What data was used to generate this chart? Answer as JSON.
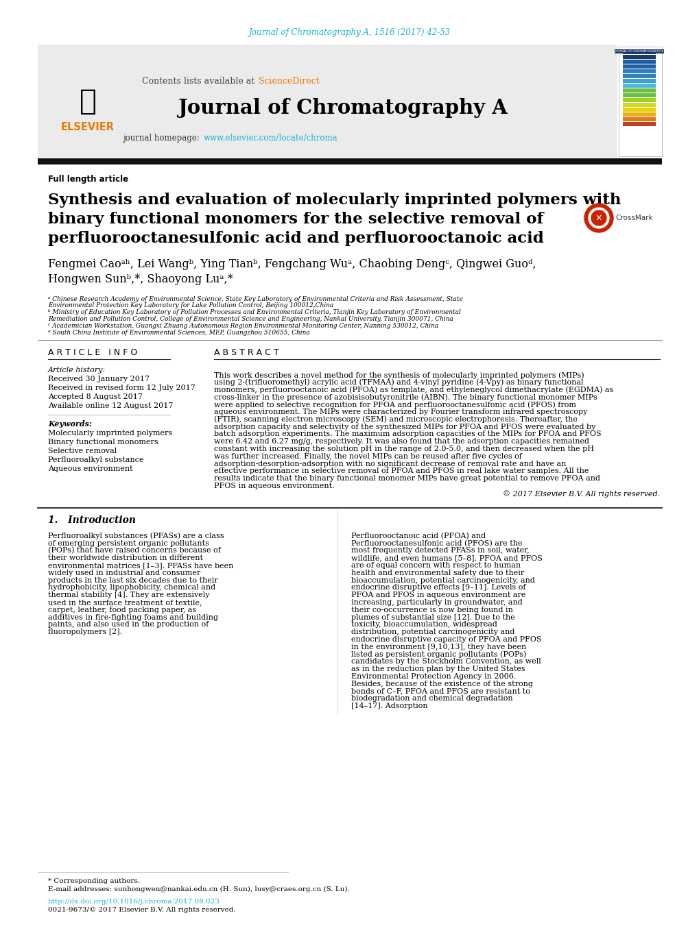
{
  "journal_ref": "Journal of Chromatography A, 1516 (2017) 42-53",
  "journal_ref_color": "#1ab2d4",
  "science_direct_color": "#f07800",
  "journal_name": "Journal of Chromatography A",
  "journal_homepage_url": "www.elsevier.com/locate/chroma",
  "journal_homepage_url_color": "#1ab2d4",
  "article_type": "Full length article",
  "title_line1": "Synthesis and evaluation of molecularly imprinted polymers with",
  "title_line2": "binary functional monomers for the selective removal of",
  "title_line3": "perfluorooctanesulfonic acid and perfluorooctanoic acid",
  "affil_a": "ᵃ Chinese Research Academy of Environmental Science, State Key Laboratory of Environmental Criteria and Risk Assessment, State Environmental Protection Key Laboratory for Lake Pollution Control, Beijing 100012,China",
  "affil_b": "ᵇ Ministry of Education Key Laboratory of Pollution Processes and Environmental Criteria, Tianjin Key Laboratory of Environmental Remediation and Pollution Control, College of Environmental Science and Engineering, Nankai University, Tianjin 300071, China",
  "affil_c": "ᶜ Academician Workstation, Guangxi Zhuang Autonomous Region Environmental Monitoring Center, Nanning 530012, China",
  "affil_d": "ᵈ South China Institute of Environmental Sciences, MEP, Guangzhou 510655, China",
  "article_info_header": "A R T I C L E   I N F O",
  "abstract_header": "A B S T R A C T",
  "article_history_label": "Article history:",
  "received": "Received 30 January 2017",
  "received_revised": "Received in revised form 12 July 2017",
  "accepted": "Accepted 8 August 2017",
  "available": "Available online 12 August 2017",
  "keywords_label": "Keywords:",
  "keywords": [
    "Molecularly imprinted polymers",
    "Binary functional monomers",
    "Selective removal",
    "Perfluoroalkyl substance",
    "Aqueous environment"
  ],
  "abstract_text": "This work describes a novel method for the synthesis of molecularly imprinted polymers (MIPs) using 2-(trifluoromethyl) acrylic acid (TFMAA) and 4-vinyl pyridine (4-Vpy) as binary functional monomers, perfluorooctanoic acid (PFOA) as template, and ethyleneglycol dimethacrylate (EGDMA) as cross-linker in the presence of azobisisobutyronitrile (AIBN). The binary functional monomer MIPs were applied to selective recognition for PFOA and perfluorooctanesulfonic acid (PFOS) from aqueous environment. The MIPs were characterized by Fourier transform infrared spectroscopy (FTIR), scanning electron microscopy (SEM) and microscopic electrophoresis. Thereafter, the adsorption capacity and selectivity of the synthesized MIPs for PFOA and PFOS were evaluated by batch adsorption experiments. The maximum adsorption capacities of the MIPs for PFOA and PFOS were 6.42 and 6.27 mg/g, respectively. It was also found that the adsorption capacities remained constant with increasing the solution pH in the range of 2.0-5.0, and then decreased when the pH was further increased. Finally, the novel MIPs can be reused after five cycles of adsorption-desorption-adsorption with no significant decrease of removal rate and have an effective performance in selective removal of PFOA and PFOS in real lake water samples. All the results indicate that the binary functional monomer MIPs have great potential to remove PFOA and PFOS in aqueous environment.",
  "copyright": "© 2017 Elsevier B.V. All rights reserved.",
  "intro_header": "1.   Introduction",
  "intro_col1": "Perfluoroalkyl substances (PFASs) are a class of emerging persistent organic pollutants (POPs) that have raised concerns because of their worldwide distribution in different environmental matrices [1–3]. PFASs have been widely used in industrial and consumer products in the last six decades due to their hydrophobicity, lipophobicity, chemical and thermal stability [4]. They are extensively used in the surface treatment of textile, carpet, leather, food packing paper, as additives in fire-fighting foams and building paints, and also used in the production of fluoropolymers [2].",
  "intro_col2": "Perfluorooctanoic acid (PFOA) and Perfluorooctanesulfonic acid (PFOS) are the most frequently detected PFASs in soil, water, wildlife, and even humans [5–8]. PFOA and PFOS are of equal concern with respect to human health and environmental safety due to their bioaccumulation, potential carcinogenicity, and endocrine disruptive effects [9–11]. Levels of PFOA and PFOS in aqueous environment are increasing, particularly in groundwater, and their co-occurrence is now being found in plumes of substantial size [12]. Due to the toxicity, bioaccumulation, widespread distribution, potential carcinogenicity and endocrine disruptive capacity of PFOA and PFOS in the environment [9,10,13], they have been listed as persistent organic pollutants (POPs) candidates by the Stockholm Convention, as well as in the reduction plan by the United States Environmental Protection Agency in 2006. Besides, because of the existence of the strong bonds of C–F, PFOA and PFOS are resistant to biodegradation and chemical degradation [14–17]. Adsorption",
  "footnote_star": "* Corresponding authors.",
  "footnote_email": "E-mail addresses: sunhongwen@nankai.edu.cn (H. Sun), lusy@craes.org.cn (S. Lu).",
  "footnote_doi": "http://dx.doi.org/10.1016/j.chroma.2017.08.023",
  "footnote_issn": "0021-9673/© 2017 Elsevier B.V. All rights reserved.",
  "link_color": "#1ab2d4",
  "dark_bar_color": "#111111",
  "sidebar_colors": [
    "#1a3a6e",
    "#1a3a6e",
    "#2060a0",
    "#2060a0",
    "#3080c0",
    "#3080c0",
    "#40a0d0",
    "#4db8e8",
    "#6cc040",
    "#6cc040",
    "#a0d020",
    "#c8e020",
    "#e8d010",
    "#e8b010",
    "#e07820",
    "#c04020"
  ]
}
